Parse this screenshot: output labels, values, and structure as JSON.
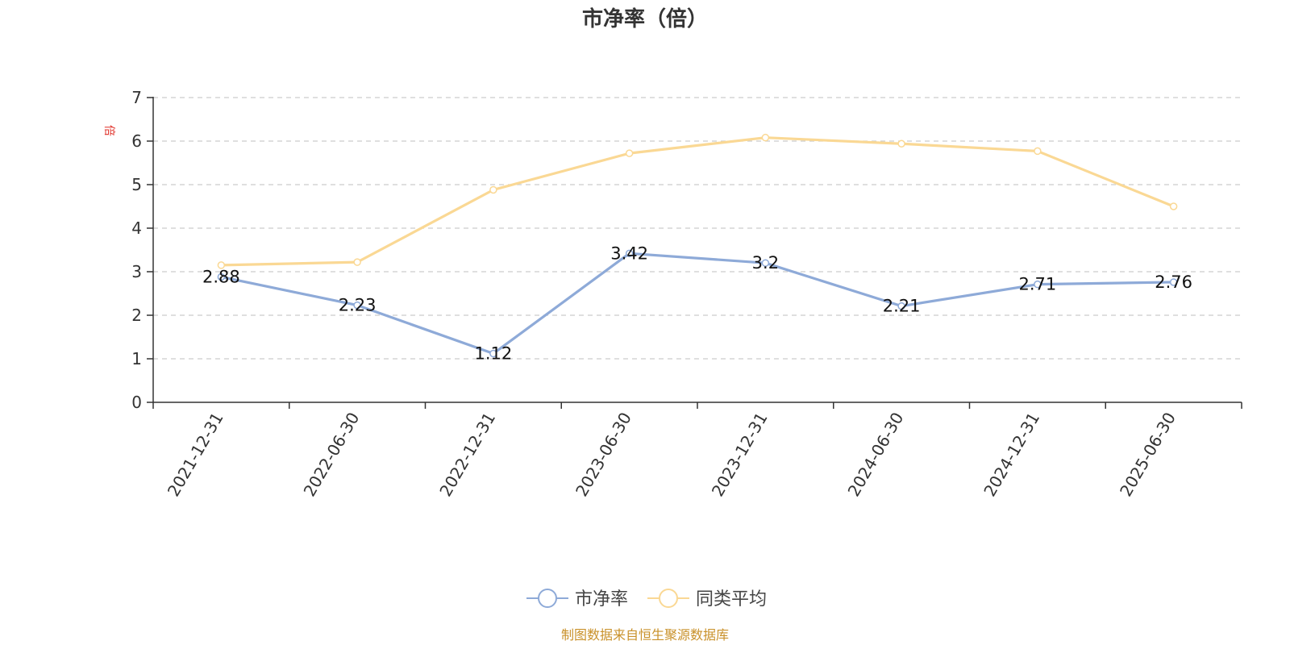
{
  "chart_data": {
    "type": "line",
    "title": "市净率（倍）",
    "ylabel": "倍",
    "categories": [
      "2021-12-31",
      "2022-06-30",
      "2022-12-31",
      "2023-06-30",
      "2023-12-31",
      "2024-06-30",
      "2024-12-31",
      "2025-06-30"
    ],
    "ylim": [
      0,
      7
    ],
    "yticks": [
      0,
      1,
      2,
      3,
      4,
      5,
      6,
      7
    ],
    "grid": true,
    "legend_position": "bottom",
    "series": [
      {
        "name": "市净率",
        "color": "#8eaad8",
        "values": [
          2.88,
          2.23,
          1.12,
          3.42,
          3.2,
          2.21,
          2.71,
          2.76
        ],
        "show_labels": true
      },
      {
        "name": "同类平均",
        "color": "#fad894",
        "values": [
          3.15,
          3.22,
          4.88,
          5.72,
          6.08,
          5.94,
          5.77,
          4.5
        ],
        "show_labels": false
      }
    ]
  },
  "colors": {
    "ylabel": "#e0322a",
    "source": "#c9912a",
    "axis": "#333333",
    "grid": "#cccccc"
  },
  "footer": {
    "source": "制图数据来自恒生聚源数据库"
  }
}
